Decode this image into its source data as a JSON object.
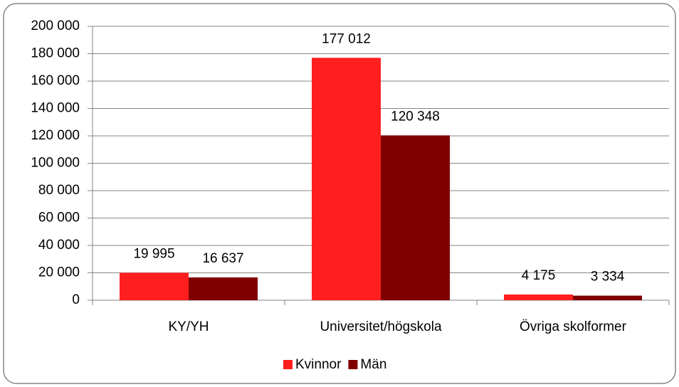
{
  "chart_data": {
    "type": "bar",
    "categories": [
      "KY/YH",
      "Universitet/högskola",
      "Övriga skolformer"
    ],
    "series": [
      {
        "name": "Kvinnor",
        "color": "#ff1f1f",
        "values": [
          19995,
          177012,
          4175
        ],
        "value_labels": [
          "19 995",
          "177 012",
          "4 175"
        ]
      },
      {
        "name": "Män",
        "color": "#800000",
        "values": [
          16637,
          120348,
          3334
        ],
        "value_labels": [
          "16 637",
          "120 348",
          "3 334"
        ]
      }
    ],
    "ylim": [
      0,
      200000
    ],
    "yticks": [
      0,
      {
        "value": 20000,
        "label": "20 000"
      },
      {
        "value": 40000,
        "label": "40 000"
      },
      {
        "value": 60000,
        "label": "60 000"
      },
      {
        "value": 80000,
        "label": "80 000"
      },
      {
        "value": 100000,
        "label": "100 000"
      },
      {
        "value": 120000,
        "label": "120 000"
      },
      {
        "value": 140000,
        "label": "140 000"
      },
      {
        "value": 160000,
        "label": "160 000"
      },
      {
        "value": 180000,
        "label": "180 000"
      },
      {
        "value": 200000,
        "label": "200 000"
      }
    ],
    "grid": true,
    "legend": "bottom"
  }
}
